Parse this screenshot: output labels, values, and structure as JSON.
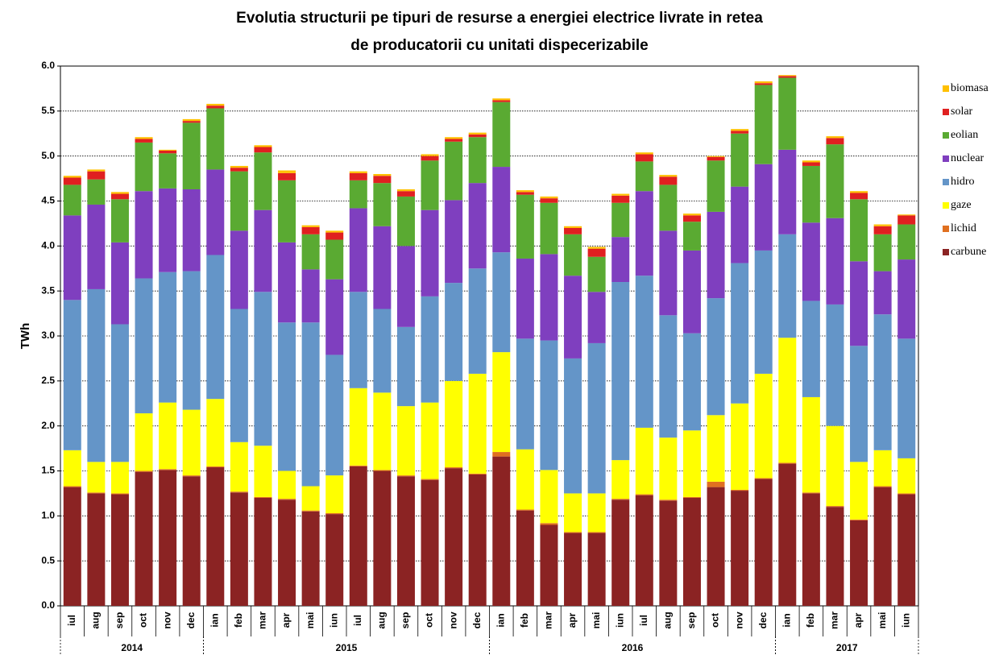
{
  "chart_data": {
    "type": "stacked_bar",
    "title": [
      "Evolutia structurii pe tipuri de resurse a energiei electrice livrate in retea",
      "de producatorii cu unitati dispecerizabile"
    ],
    "y_label": "TWh",
    "categories": [
      "iul",
      "aug",
      "sep",
      "oct",
      "nov",
      "dec",
      "ian",
      "feb",
      "mar",
      "apr",
      "mai",
      "iun",
      "iul",
      "aug",
      "sep",
      "oct",
      "nov",
      "dec",
      "ian",
      "feb",
      "mar",
      "apr",
      "mai",
      "iun",
      "iul",
      "aug",
      "sep",
      "oct",
      "nov",
      "dec",
      "ian",
      "feb",
      "mar",
      "apr",
      "mai",
      "iun"
    ],
    "year_groups": [
      {
        "label": "2014",
        "count": 6
      },
      {
        "label": "2015",
        "count": 12
      },
      {
        "label": "2016",
        "count": 12
      },
      {
        "label": "2017",
        "count": 6
      }
    ],
    "ylim": [
      0,
      6
    ],
    "yticks": [
      {
        "value": 0,
        "label": "0.0"
      },
      {
        "value": 0.5,
        "label": "0.5"
      },
      {
        "value": 1,
        "label": "1.0"
      },
      {
        "value": 1.5,
        "label": "1.5"
      },
      {
        "value": 2,
        "label": "2.0"
      },
      {
        "value": 2.5,
        "label": "2.5"
      },
      {
        "value": 3,
        "label": "3.0"
      },
      {
        "value": 3.5,
        "label": "3.5"
      },
      {
        "value": 4,
        "label": "4.0"
      },
      {
        "value": 4.5,
        "label": "4.5"
      },
      {
        "value": 5,
        "label": "5.0"
      },
      {
        "value": 5.5,
        "label": "5.5"
      },
      {
        "value": 6,
        "label": "6.0"
      }
    ],
    "grid": true,
    "legend": "right",
    "series": [
      {
        "name": "carbune",
        "color": "#8b2323",
        "values": [
          1.32,
          1.25,
          1.24,
          1.49,
          1.51,
          1.44,
          1.54,
          1.26,
          1.2,
          1.18,
          1.05,
          1.02,
          1.55,
          1.5,
          1.44,
          1.4,
          1.53,
          1.46,
          1.66,
          1.06,
          0.9,
          0.81,
          0.81,
          1.18,
          1.23,
          1.17,
          1.2,
          1.32,
          1.28,
          1.41,
          1.58,
          1.25,
          1.1,
          0.95,
          1.32,
          1.24
        ]
      },
      {
        "name": "lichid",
        "color": "#e07020",
        "values": [
          0.01,
          0.01,
          0.01,
          0.01,
          0.01,
          0.01,
          0.01,
          0.01,
          0.01,
          0.01,
          0.01,
          0.01,
          0.01,
          0.01,
          0.01,
          0.01,
          0.01,
          0.01,
          0.05,
          0.01,
          0.02,
          0.01,
          0.01,
          0.01,
          0.01,
          0.01,
          0.01,
          0.06,
          0.01,
          0.01,
          0.01,
          0.01,
          0.01,
          0.01,
          0.01,
          0.01
        ]
      },
      {
        "name": "gaze",
        "color": "#ffff00",
        "values": [
          0.4,
          0.34,
          0.35,
          0.64,
          0.74,
          0.73,
          0.75,
          0.55,
          0.57,
          0.31,
          0.27,
          0.42,
          0.86,
          0.86,
          0.77,
          0.85,
          0.96,
          1.11,
          1.11,
          0.67,
          0.59,
          0.43,
          0.43,
          0.43,
          0.74,
          0.69,
          0.74,
          0.74,
          0.96,
          1.16,
          1.39,
          1.06,
          0.89,
          0.64,
          0.4,
          0.39
        ]
      },
      {
        "name": "hidro",
        "color": "#6495c8",
        "values": [
          1.67,
          1.92,
          1.53,
          1.5,
          1.45,
          1.54,
          1.6,
          1.48,
          1.71,
          1.65,
          1.82,
          1.34,
          1.07,
          0.93,
          0.88,
          1.18,
          1.09,
          1.17,
          1.11,
          1.23,
          1.44,
          1.5,
          1.67,
          1.98,
          1.69,
          1.36,
          1.08,
          1.3,
          1.56,
          1.37,
          1.15,
          1.07,
          1.35,
          1.29,
          1.51,
          1.33
        ]
      },
      {
        "name": "nuclear",
        "color": "#7f3fbf",
        "values": [
          0.94,
          0.94,
          0.91,
          0.97,
          0.93,
          0.91,
          0.95,
          0.87,
          0.91,
          0.89,
          0.59,
          0.84,
          0.93,
          0.92,
          0.9,
          0.96,
          0.92,
          0.95,
          0.95,
          0.89,
          0.96,
          0.92,
          0.57,
          0.5,
          0.94,
          0.94,
          0.92,
          0.96,
          0.85,
          0.96,
          0.94,
          0.87,
          0.96,
          0.94,
          0.48,
          0.88
        ]
      },
      {
        "name": "eolian",
        "color": "#5aaa32",
        "values": [
          0.34,
          0.28,
          0.48,
          0.54,
          0.39,
          0.74,
          0.68,
          0.66,
          0.64,
          0.69,
          0.39,
          0.44,
          0.31,
          0.48,
          0.55,
          0.55,
          0.65,
          0.51,
          0.72,
          0.71,
          0.57,
          0.46,
          0.39,
          0.38,
          0.33,
          0.51,
          0.32,
          0.57,
          0.59,
          0.88,
          0.8,
          0.63,
          0.82,
          0.69,
          0.41,
          0.39
        ]
      },
      {
        "name": "solar",
        "color": "#e02020",
        "values": [
          0.08,
          0.09,
          0.06,
          0.04,
          0.03,
          0.02,
          0.03,
          0.04,
          0.06,
          0.08,
          0.08,
          0.08,
          0.08,
          0.08,
          0.06,
          0.05,
          0.03,
          0.03,
          0.02,
          0.03,
          0.05,
          0.07,
          0.09,
          0.08,
          0.08,
          0.09,
          0.07,
          0.04,
          0.03,
          0.02,
          0.02,
          0.04,
          0.07,
          0.07,
          0.09,
          0.1
        ]
      },
      {
        "name": "biomasa",
        "color": "#ffc000",
        "values": [
          0.02,
          0.02,
          0.02,
          0.02,
          0.01,
          0.02,
          0.02,
          0.02,
          0.02,
          0.03,
          0.02,
          0.02,
          0.02,
          0.02,
          0.02,
          0.02,
          0.02,
          0.02,
          0.02,
          0.02,
          0.02,
          0.02,
          0.02,
          0.02,
          0.02,
          0.02,
          0.02,
          0.01,
          0.02,
          0.02,
          0.01,
          0.02,
          0.02,
          0.02,
          0.02,
          0.01
        ]
      }
    ]
  }
}
